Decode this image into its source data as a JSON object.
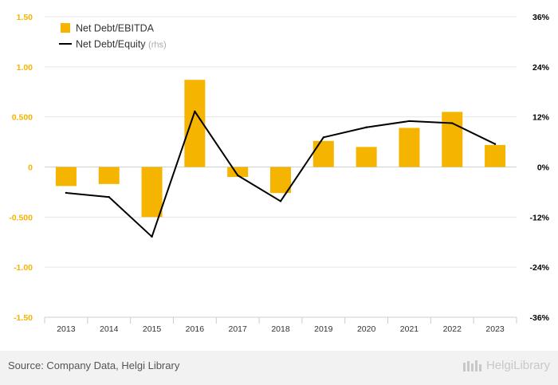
{
  "chart_data": {
    "type": "bar+line",
    "categories": [
      "2013",
      "2014",
      "2015",
      "2016",
      "2017",
      "2018",
      "2019",
      "2020",
      "2021",
      "2022",
      "2023"
    ],
    "series": [
      {
        "name": "Net Debt/EBITDA",
        "type": "bar",
        "axis": "left",
        "color": "#f5b400",
        "values": [
          -0.19,
          -0.17,
          -0.5,
          0.87,
          -0.1,
          -0.26,
          0.26,
          0.2,
          0.39,
          0.55,
          0.22
        ]
      },
      {
        "name": "Net Debt/Equity",
        "type": "line",
        "axis": "right",
        "color": "#000000",
        "values": [
          -6.2,
          -7.2,
          -16.7,
          13.3,
          -2.0,
          -8.2,
          7.1,
          9.5,
          11.0,
          10.5,
          5.5
        ]
      }
    ],
    "left_axis": {
      "ylim": [
        -1.5,
        1.5
      ],
      "ticks": [
        1.5,
        1.0,
        0.5,
        0,
        -0.5,
        -1.0,
        -1.5
      ],
      "tick_labels": [
        "1.50",
        "1.00",
        "0.500",
        "0",
        "-0.500",
        "-1.00",
        "-1.50"
      ],
      "color": "#f5b400"
    },
    "right_axis": {
      "ylim": [
        -36,
        36
      ],
      "ticks": [
        36,
        24,
        12,
        0,
        -12,
        -24,
        -36
      ],
      "tick_labels": [
        "36%",
        "24%",
        "12%",
        "0%",
        "-12%",
        "-24%",
        "-36%"
      ],
      "color": "#000000"
    },
    "legend": {
      "position": "top-left",
      "rhs_suffix": "(rhs)"
    },
    "grid": true
  },
  "footer": {
    "source": "Source: Company Data, Helgi Library",
    "brand": "HelgiLibrary"
  }
}
